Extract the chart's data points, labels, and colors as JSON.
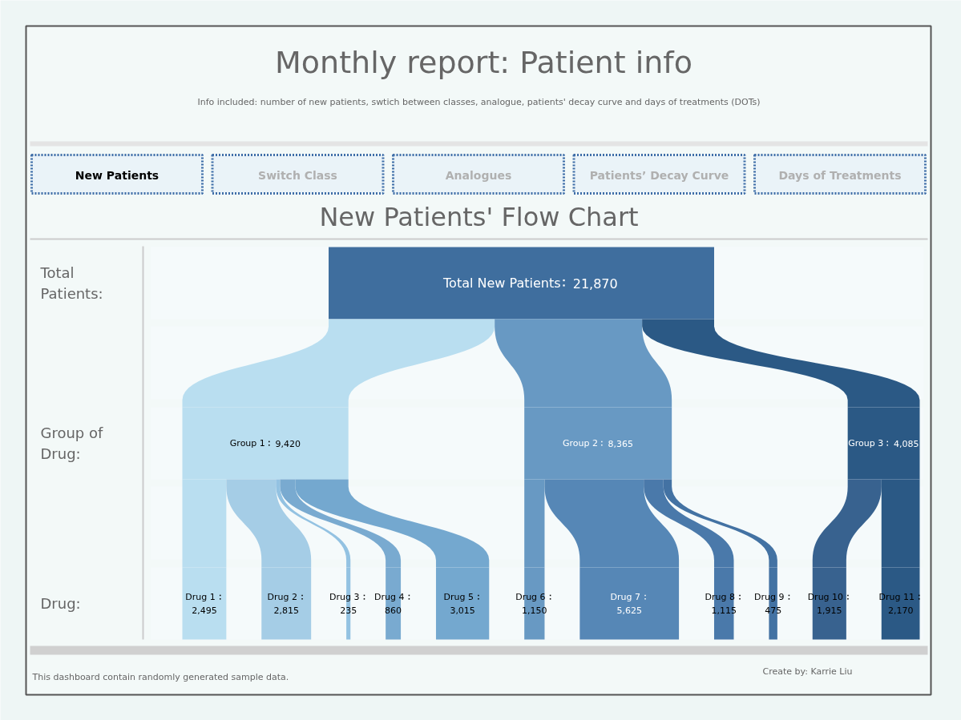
{
  "chart_data": [
    {
      "type": "other",
      "title": "Monthly report: Patient info",
      "subtitle": "Info included: number of new patients, swtich between classes, analogue, patients' decay curve and days of treatments (DOTs)",
      "annotations": [
        "New Patients",
        "Switch Class",
        "Analogues",
        "Patients’ Decay Curve",
        "Days of Treatments",
        "New Patients' Flow Chart",
        "This dashboard contain randomly generated sample data.",
        "Create by: Karrie Liu"
      ],
      "ylabel": "Total Patients:",
      "categories": [
        "Total New Patients"
      ],
      "values": [
        21870
      ],
      "colors": [
        "#3f6e9e"
      ],
      "value_labels": [
        "21,870"
      ]
    },
    {
      "type": "other",
      "ylabel": "Group of Drug:",
      "categories": [
        "Group 1",
        "Group 2",
        "Group 3"
      ],
      "values": [
        9420,
        8365,
        4085
      ],
      "colors": [
        "#b9def0",
        "#6899c3",
        "#2b5985"
      ],
      "value_labels": [
        "9,420",
        "8,365",
        "4,085"
      ]
    },
    {
      "type": "other",
      "ylabel": "Drug:",
      "categories": [
        "Drug 1",
        "Drug 2",
        "Drug 3",
        "Drug 4",
        "Drug 5",
        "Drug 6",
        "Drug 7",
        "Drug 8",
        "Drug 9",
        "Drug 10",
        "Drug 11"
      ],
      "values": [
        2495,
        2815,
        235,
        860,
        3015,
        1150,
        5625,
        1115,
        475,
        1915,
        2170
      ],
      "colors": [
        "#b9def0",
        "#a5cde6",
        "#93c2e2",
        "#79aad0",
        "#74a8cf",
        "#6899c3",
        "#5687b6",
        "#4a79aa",
        "#4372a3",
        "#38628f",
        "#2b5985"
      ],
      "value_labels": [
        "2,495",
        "2,815",
        "235",
        "860",
        "3,015",
        "1,150",
        "5,625",
        "1,115",
        "475",
        "1,915",
        "2,170"
      ]
    }
  ]
}
